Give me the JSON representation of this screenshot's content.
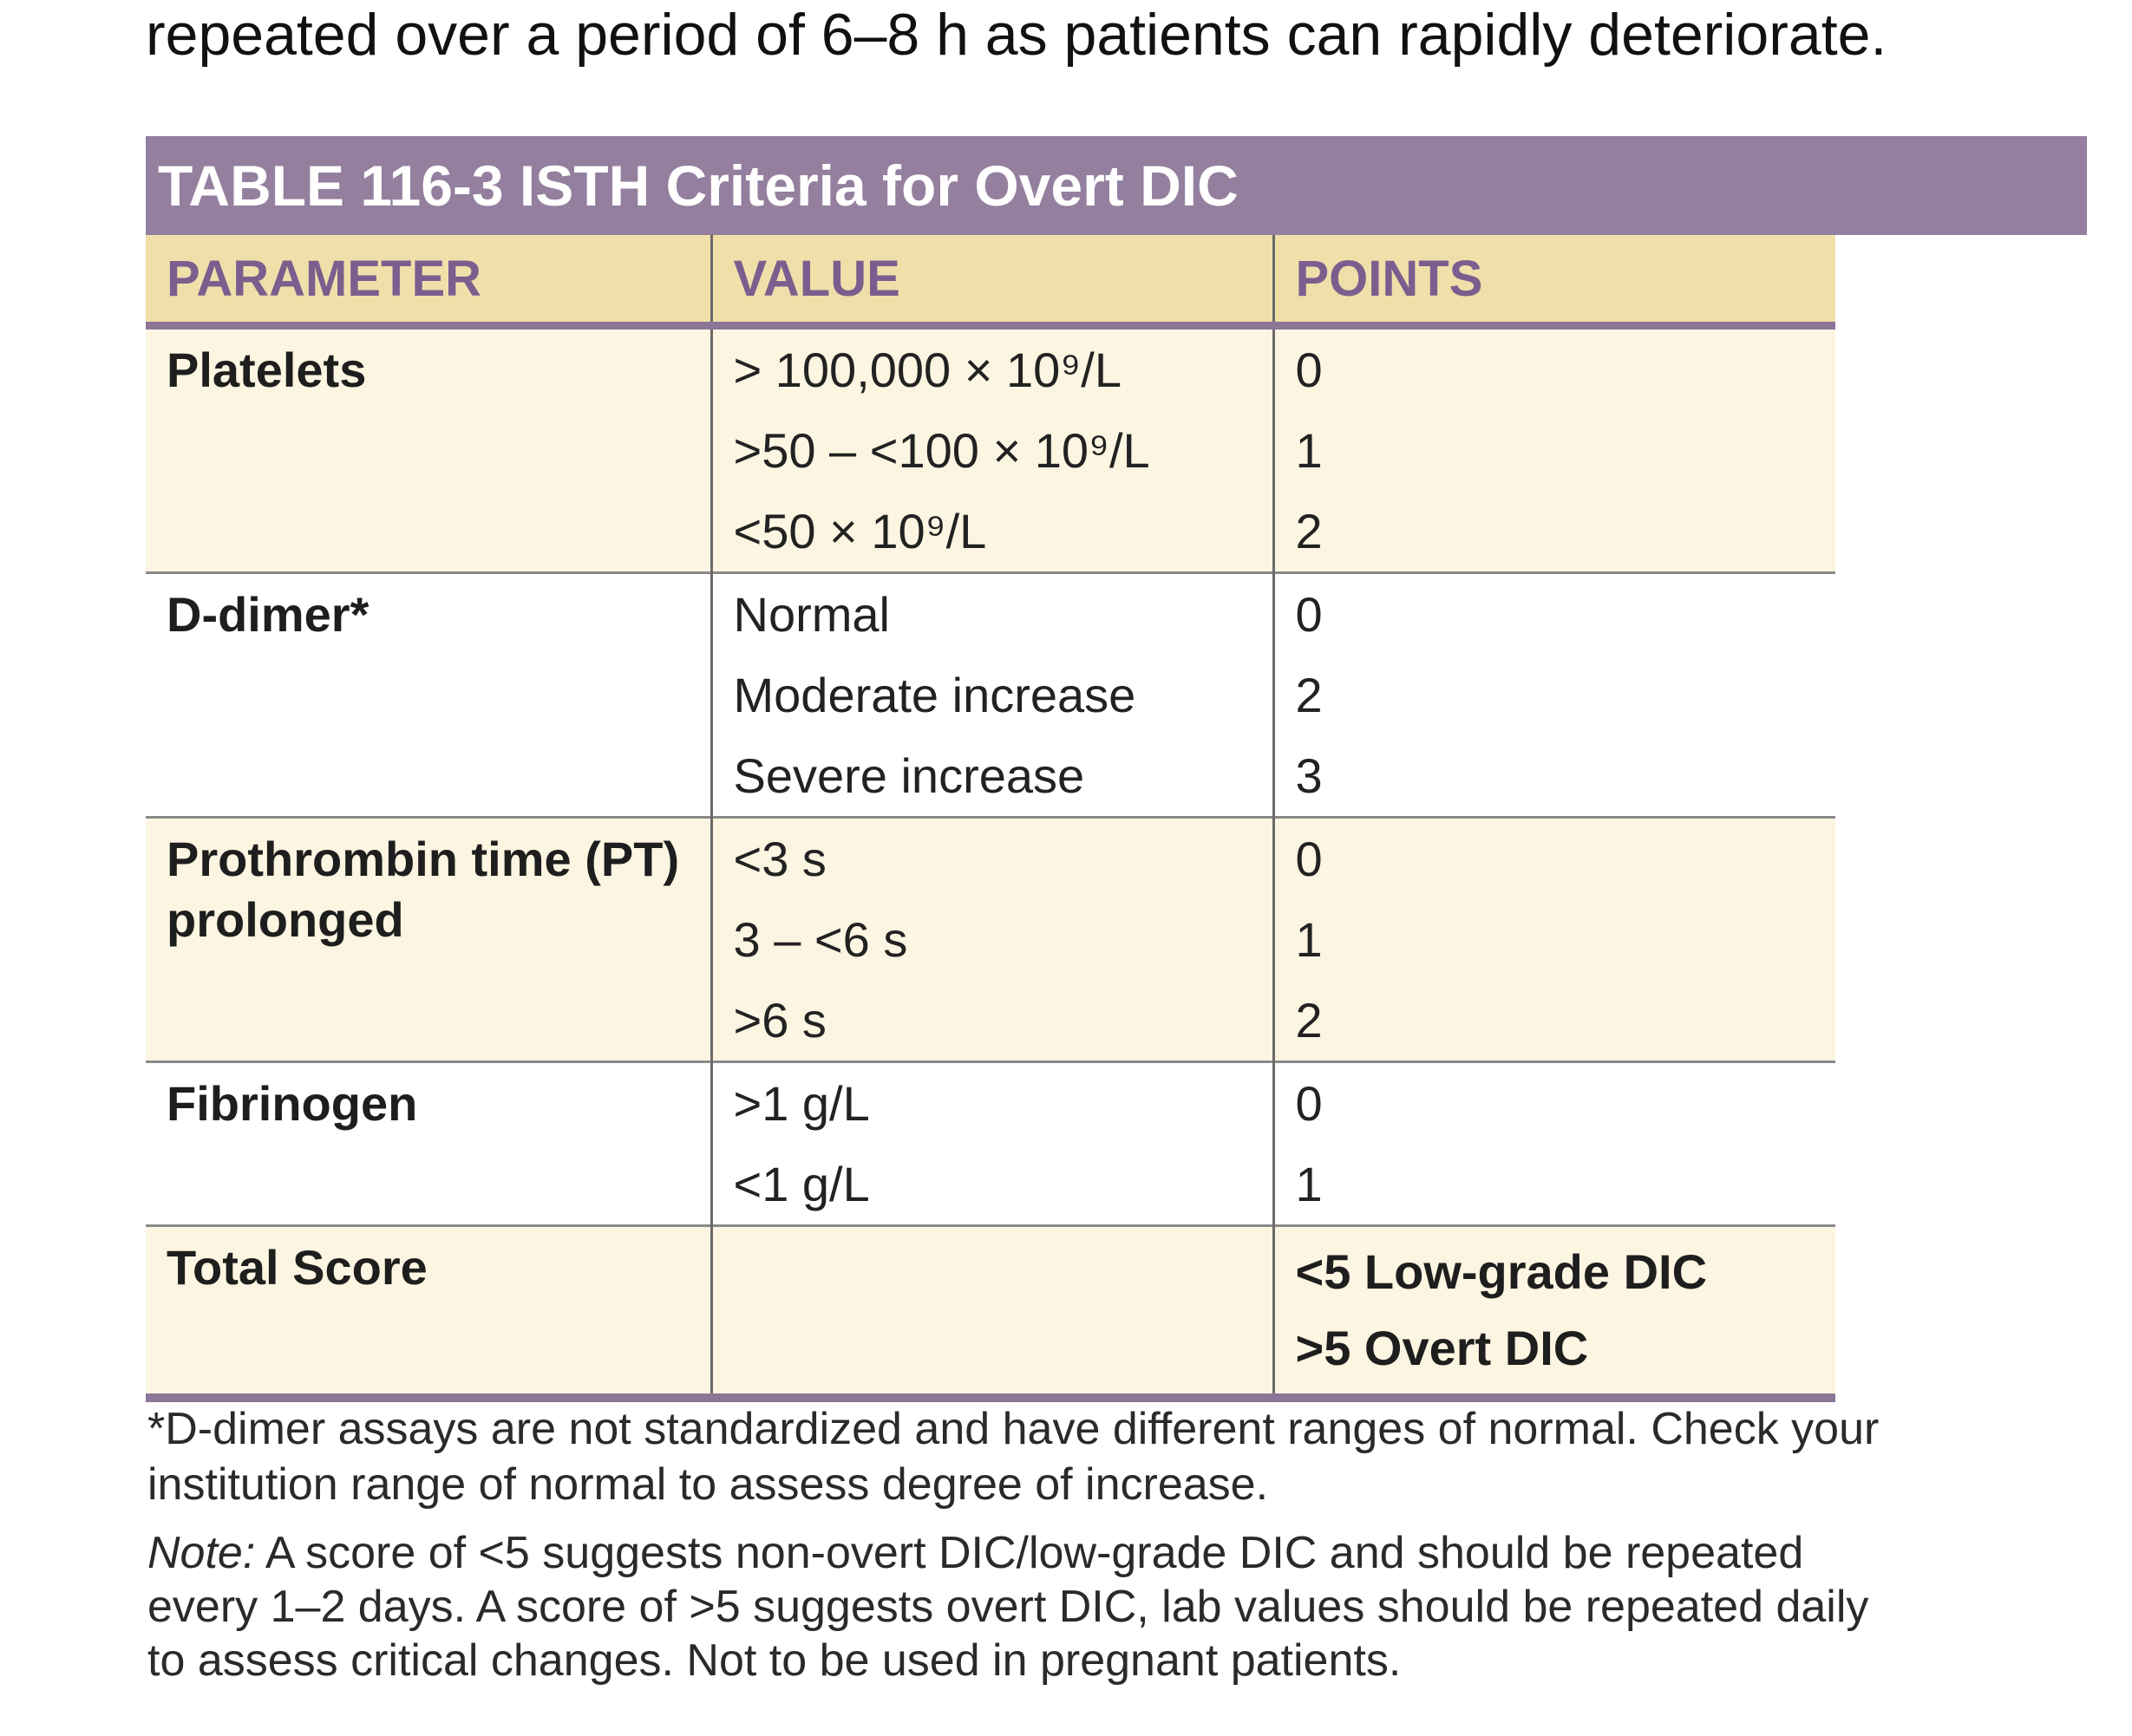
{
  "lead_text": "repeated over a period of 6–8 h as patients can rapidly deteriorate.",
  "table": {
    "title": "TABLE 116-3 ISTH Criteria for Overt DIC",
    "headers": [
      "PARAMETER",
      "VALUE",
      "POINTS"
    ],
    "rows": [
      {
        "parameter": "Platelets",
        "values": [
          "> 100,000 × 10⁹/L",
          ">50 – <100 × 10⁹/L",
          "<50 × 10⁹/L"
        ],
        "points": [
          "0",
          "1",
          "2"
        ]
      },
      {
        "parameter": "D-dimer*",
        "values": [
          "Normal",
          "Moderate increase",
          "Severe increase"
        ],
        "points": [
          "0",
          "2",
          "3"
        ]
      },
      {
        "parameter": "Prothrombin time (PT) prolonged",
        "values": [
          "<3 s",
          "3 – <6 s",
          ">6 s"
        ],
        "points": [
          "0",
          "1",
          "2"
        ]
      },
      {
        "parameter": "Fibrinogen",
        "values": [
          ">1 g/L",
          "<1 g/L"
        ],
        "points": [
          "0",
          "1"
        ]
      },
      {
        "parameter": "Total Score",
        "values": [],
        "points": [
          "<5 Low-grade DIC",
          ">5 Overt DIC"
        ]
      }
    ]
  },
  "footnote": "*D-dimer assays are not standardized and have different ranges of normal. Check your institution range of normal to assess degree of increase.",
  "note": {
    "label": "Note:",
    "text": " A score of <5 suggests non-overt DIC/low-grade DIC and should be repeated every 1–2 days. A score of >5 suggests overt DIC, lab values should be repeated daily to assess critical changes. Not to be used in pregnant patients."
  }
}
